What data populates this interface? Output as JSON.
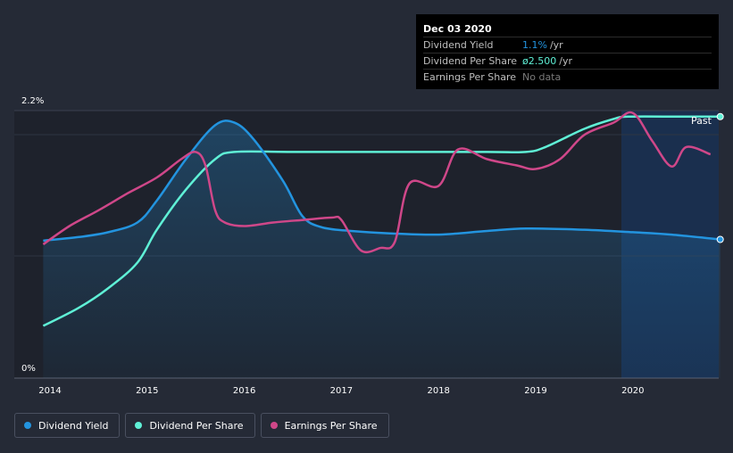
{
  "chart_data": {
    "type": "line",
    "x_ticks": [
      "2014",
      "2015",
      "2016",
      "2017",
      "2018",
      "2019",
      "2020"
    ],
    "y_ticks": [
      "2.2%",
      "0%"
    ],
    "ylim": [
      0,
      2.2
    ],
    "past_label": "Past",
    "series": [
      {
        "name": "Dividend Yield",
        "color": "#2394df",
        "points": [
          [
            2013.93,
            1.13
          ],
          [
            2014.3,
            1.16
          ],
          [
            2014.6,
            1.2
          ],
          [
            2014.9,
            1.28
          ],
          [
            2015.1,
            1.46
          ],
          [
            2015.4,
            1.8
          ],
          [
            2015.7,
            2.08
          ],
          [
            2015.9,
            2.1
          ],
          [
            2016.1,
            1.96
          ],
          [
            2016.4,
            1.62
          ],
          [
            2016.6,
            1.33
          ],
          [
            2016.8,
            1.24
          ],
          [
            2017.1,
            1.21
          ],
          [
            2017.5,
            1.19
          ],
          [
            2018.0,
            1.18
          ],
          [
            2018.5,
            1.21
          ],
          [
            2018.9,
            1.23
          ],
          [
            2019.5,
            1.22
          ],
          [
            2020.0,
            1.2
          ],
          [
            2020.4,
            1.18
          ],
          [
            2020.9,
            1.14
          ]
        ]
      },
      {
        "name": "Dividend Per Share",
        "color": "#5ff0d6",
        "points": [
          [
            2013.93,
            0.43
          ],
          [
            2014.3,
            0.58
          ],
          [
            2014.6,
            0.74
          ],
          [
            2014.9,
            0.95
          ],
          [
            2015.1,
            1.22
          ],
          [
            2015.4,
            1.55
          ],
          [
            2015.7,
            1.8
          ],
          [
            2015.9,
            1.86
          ],
          [
            2016.5,
            1.86
          ],
          [
            2017.5,
            1.86
          ],
          [
            2018.5,
            1.86
          ],
          [
            2018.9,
            1.86
          ],
          [
            2019.1,
            1.9
          ],
          [
            2019.5,
            2.05
          ],
          [
            2019.8,
            2.13
          ],
          [
            2019.95,
            2.15
          ],
          [
            2020.5,
            2.15
          ],
          [
            2020.9,
            2.15
          ]
        ]
      },
      {
        "name": "Earnings Per Share",
        "color": "#cf4789",
        "points": [
          [
            2013.93,
            1.1
          ],
          [
            2014.2,
            1.25
          ],
          [
            2014.5,
            1.38
          ],
          [
            2014.8,
            1.52
          ],
          [
            2015.1,
            1.65
          ],
          [
            2015.35,
            1.8
          ],
          [
            2015.5,
            1.86
          ],
          [
            2015.6,
            1.75
          ],
          [
            2015.7,
            1.38
          ],
          [
            2015.8,
            1.28
          ],
          [
            2016.0,
            1.25
          ],
          [
            2016.3,
            1.28
          ],
          [
            2016.6,
            1.3
          ],
          [
            2016.9,
            1.32
          ],
          [
            2017.0,
            1.3
          ],
          [
            2017.2,
            1.05
          ],
          [
            2017.4,
            1.07
          ],
          [
            2017.55,
            1.12
          ],
          [
            2017.7,
            1.6
          ],
          [
            2018.0,
            1.58
          ],
          [
            2018.2,
            1.88
          ],
          [
            2018.5,
            1.8
          ],
          [
            2018.8,
            1.75
          ],
          [
            2019.0,
            1.72
          ],
          [
            2019.25,
            1.8
          ],
          [
            2019.5,
            2.0
          ],
          [
            2019.8,
            2.1
          ],
          [
            2020.0,
            2.18
          ],
          [
            2020.2,
            1.95
          ],
          [
            2020.4,
            1.74
          ],
          [
            2020.55,
            1.9
          ],
          [
            2020.8,
            1.84
          ]
        ]
      }
    ],
    "tooltip": {
      "date": "Dec 03 2020",
      "rows": [
        {
          "label": "Dividend Yield",
          "value": "1.1%",
          "unit": "/yr",
          "color": "#2394df"
        },
        {
          "label": "Dividend Per Share",
          "value": "ø2.500",
          "unit": "/yr",
          "color": "#5ff0d6"
        },
        {
          "label": "Earnings Per Share",
          "value": "No data",
          "unit": "",
          "color": "#7a7a7a"
        }
      ]
    }
  }
}
